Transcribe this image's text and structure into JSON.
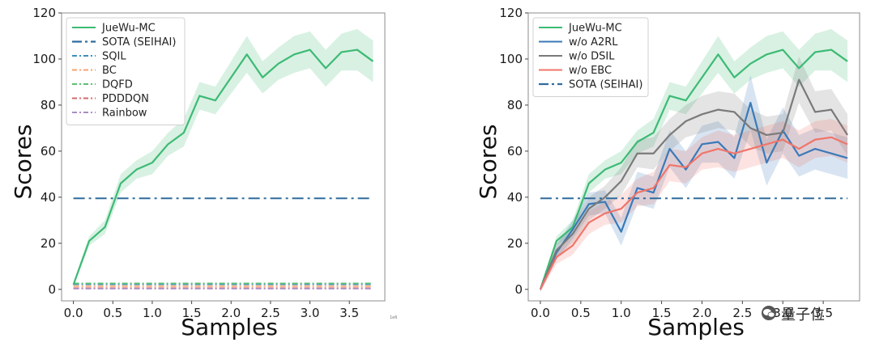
{
  "chart_data": [
    {
      "type": "line",
      "xlabel": "Samples",
      "ylabel": "Scores",
      "exponent": "1e6",
      "xlim": [
        -0.15,
        3.95
      ],
      "ylim": [
        -5,
        120
      ],
      "xticks": [
        0.0,
        0.5,
        1.0,
        1.5,
        2.0,
        2.5,
        3.0,
        3.5
      ],
      "xtick_labels": [
        "0.0",
        "0.5",
        "1.0",
        "1.5",
        "2.0",
        "2.5",
        "3.0",
        "3.5"
      ],
      "yticks": [
        0,
        20,
        40,
        60,
        80,
        100,
        120
      ],
      "ytick_labels": [
        "0",
        "20",
        "40",
        "60",
        "80",
        "100",
        "120"
      ],
      "legend_position": "top-left",
      "series": [
        {
          "name": "JueWu-MC",
          "color": "#3dba74",
          "style": "solid",
          "band": true,
          "x": [
            0.0,
            0.2,
            0.4,
            0.6,
            0.8,
            1.0,
            1.2,
            1.4,
            1.6,
            1.8,
            2.0,
            2.2,
            2.4,
            2.6,
            2.8,
            3.0,
            3.2,
            3.4,
            3.6,
            3.8
          ],
          "y": [
            2,
            21,
            27,
            46,
            52,
            55,
            63,
            68,
            84,
            82,
            92,
            102,
            92,
            98,
            102,
            104,
            96,
            103,
            104,
            99
          ],
          "band_spread": [
            1,
            2,
            3,
            4,
            4,
            5,
            5,
            6,
            6,
            6,
            7,
            8,
            7,
            7,
            8,
            8,
            8,
            8,
            9,
            9
          ]
        },
        {
          "name": "SOTA (SEIHAI)",
          "color": "#2f6c9e",
          "style": "dashdot-bold",
          "x": [
            0.0,
            3.8
          ],
          "y": [
            39.5,
            39.5
          ]
        },
        {
          "name": "SQIL",
          "color": "#3d8fbf",
          "style": "dashdot",
          "x": [
            0.0,
            3.8
          ],
          "y": [
            2.2,
            2.2
          ]
        },
        {
          "name": "BC",
          "color": "#f5a371",
          "style": "dashdot",
          "x": [
            0.0,
            3.8
          ],
          "y": [
            1.4,
            1.4
          ]
        },
        {
          "name": "DQFD",
          "color": "#5cbf73",
          "style": "dashdot",
          "x": [
            0.0,
            3.8
          ],
          "y": [
            2.6,
            2.6
          ]
        },
        {
          "name": "PDDDQN",
          "color": "#d66a6a",
          "style": "dashdot",
          "x": [
            0.0,
            3.8
          ],
          "y": [
            0.5,
            0.5
          ]
        },
        {
          "name": "Rainbow",
          "color": "#a98cc4",
          "style": "dashdot",
          "x": [
            0.0,
            3.8
          ],
          "y": [
            0.3,
            0.3
          ]
        }
      ]
    },
    {
      "type": "line",
      "xlabel": "Samples",
      "ylabel": "Scores",
      "xlim": [
        -0.15,
        3.95
      ],
      "ylim": [
        -5,
        120
      ],
      "xticks": [
        0.0,
        0.5,
        1.0,
        1.5,
        2.0,
        2.5,
        3.0,
        3.5
      ],
      "xtick_labels": [
        "0.0",
        "0.5",
        "1.0",
        "1.5",
        "2.0",
        "2.5",
        "3.0",
        "3.5"
      ],
      "yticks": [
        0,
        20,
        40,
        60,
        80,
        100,
        120
      ],
      "ytick_labels": [
        "0",
        "20",
        "40",
        "60",
        "80",
        "100",
        "120"
      ],
      "legend_position": "top-left",
      "series": [
        {
          "name": "JueWu-MC",
          "color": "#3dba74",
          "style": "solid",
          "band": true,
          "x": [
            0.0,
            0.2,
            0.4,
            0.6,
            0.8,
            1.0,
            1.2,
            1.4,
            1.6,
            1.8,
            2.0,
            2.2,
            2.4,
            2.6,
            2.8,
            3.0,
            3.2,
            3.4,
            3.6,
            3.8
          ],
          "y": [
            0,
            21,
            27,
            46,
            52,
            55,
            64,
            68,
            84,
            82,
            92,
            102,
            92,
            98,
            102,
            104,
            96,
            103,
            104,
            99
          ],
          "band_spread": [
            1,
            2,
            3,
            4,
            4,
            5,
            5,
            6,
            6,
            6,
            7,
            8,
            7,
            7,
            8,
            8,
            8,
            8,
            9,
            9
          ]
        },
        {
          "name": "w/o A2RL",
          "color": "#3a7ab8",
          "style": "solid",
          "band": true,
          "x": [
            0.0,
            0.2,
            0.4,
            0.6,
            0.8,
            1.0,
            1.2,
            1.4,
            1.6,
            1.8,
            2.0,
            2.2,
            2.4,
            2.6,
            2.8,
            3.0,
            3.2,
            3.4,
            3.6,
            3.8
          ],
          "y": [
            0,
            16,
            26,
            37,
            38,
            25,
            44,
            42,
            61,
            52,
            63,
            64,
            57,
            81,
            55,
            69,
            58,
            61,
            59,
            57
          ],
          "band_spread": [
            1,
            3,
            4,
            5,
            5,
            6,
            7,
            7,
            8,
            8,
            8,
            9,
            9,
            12,
            10,
            10,
            9,
            9,
            9,
            9
          ]
        },
        {
          "name": "w/o DSIL",
          "color": "#7a7a7a",
          "style": "solid",
          "band": true,
          "x": [
            0.0,
            0.2,
            0.4,
            0.6,
            0.8,
            1.0,
            1.2,
            1.4,
            1.6,
            1.8,
            2.0,
            2.2,
            2.4,
            2.6,
            2.8,
            3.0,
            3.2,
            3.4,
            3.6,
            3.8
          ],
          "y": [
            0,
            17,
            24,
            35,
            40,
            47,
            59,
            59,
            67,
            73,
            76,
            78,
            77,
            70,
            67,
            68,
            91,
            77,
            78,
            67
          ],
          "band_spread": [
            1,
            3,
            4,
            5,
            5,
            6,
            6,
            7,
            7,
            7,
            8,
            8,
            8,
            8,
            8,
            8,
            10,
            9,
            9,
            9
          ]
        },
        {
          "name": "w/o EBC",
          "color": "#f0756a",
          "style": "solid",
          "band": true,
          "x": [
            0.0,
            0.2,
            0.4,
            0.6,
            0.8,
            1.0,
            1.2,
            1.4,
            1.6,
            1.8,
            2.0,
            2.2,
            2.4,
            2.6,
            2.8,
            3.0,
            3.2,
            3.4,
            3.6,
            3.8
          ],
          "y": [
            0,
            14,
            19,
            29,
            33,
            35,
            42,
            44,
            54,
            53,
            59,
            61,
            59,
            61,
            63,
            65,
            61,
            65,
            66,
            63
          ],
          "band_spread": [
            1,
            3,
            4,
            5,
            5,
            6,
            6,
            7,
            7,
            7,
            7,
            8,
            8,
            8,
            8,
            8,
            8,
            8,
            8,
            8
          ]
        },
        {
          "name": "SOTA (SEIHAI)",
          "color": "#2f6c9e",
          "style": "dashdot-bold",
          "x": [
            0.0,
            3.8
          ],
          "y": [
            39.5,
            39.5
          ]
        }
      ]
    }
  ],
  "watermark": {
    "text": "量子位",
    "icon": "wechat-icon"
  }
}
